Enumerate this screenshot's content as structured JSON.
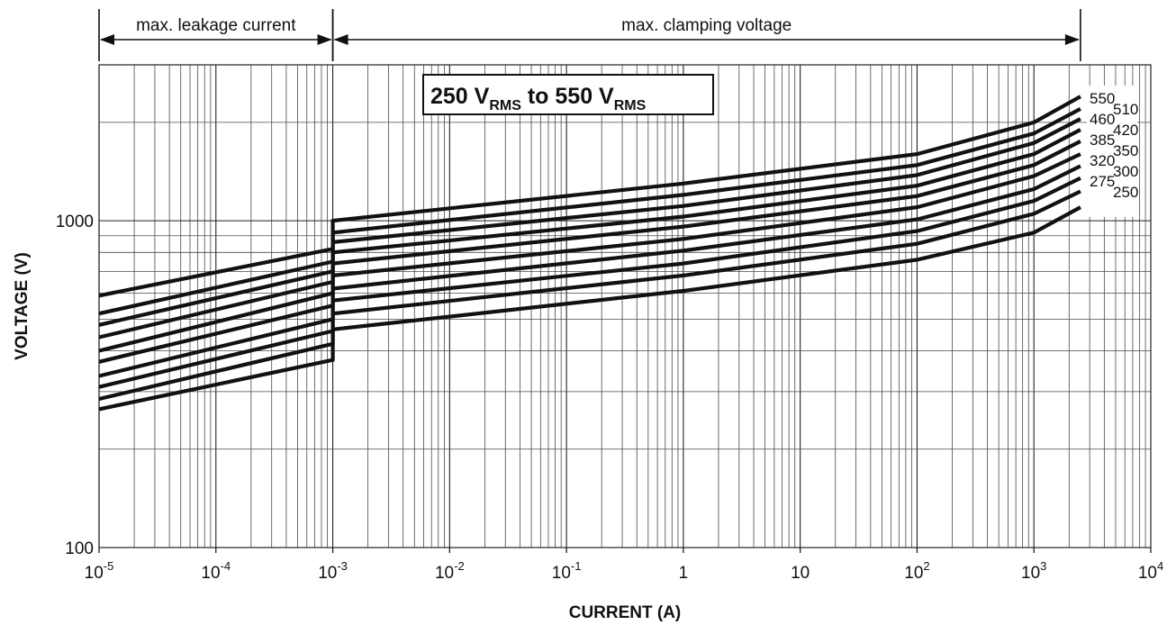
{
  "chart_data": {
    "type": "line",
    "title_parts": [
      "250 V",
      "RMS",
      " to 550 V",
      "RMS"
    ],
    "xlabel": "CURRENT (A)",
    "ylabel": "VOLTAGE (V)",
    "xscale": "log",
    "yscale": "log",
    "xlim": [
      1e-05,
      10000
    ],
    "ylim": [
      100,
      3000
    ],
    "grid": true,
    "x_ticks": [
      {
        "base": "10",
        "exp": "-5",
        "value": 1e-05
      },
      {
        "base": "10",
        "exp": "-4",
        "value": 0.0001
      },
      {
        "base": "10",
        "exp": "-3",
        "value": 0.001
      },
      {
        "base": "10",
        "exp": "-2",
        "value": 0.01
      },
      {
        "base": "10",
        "exp": "-1",
        "value": 0.1
      },
      {
        "base": "1",
        "exp": "",
        "value": 1
      },
      {
        "base": "10",
        "exp": "",
        "value": 10
      },
      {
        "base": "10",
        "exp": "2",
        "value": 100
      },
      {
        "base": "10",
        "exp": "3",
        "value": 1000
      },
      {
        "base": "10",
        "exp": "4",
        "value": 10000
      }
    ],
    "y_ticks": [
      {
        "label": "100",
        "value": 100
      },
      {
        "label": "1000",
        "value": 1000
      }
    ],
    "annotations": {
      "leakage": {
        "text": "max. leakage current",
        "x_from": 1e-05,
        "x_to": 0.001
      },
      "clamping": {
        "text": "max. clamping voltage",
        "x_from": 0.001,
        "x_to": 2500
      }
    },
    "legend_placement": "right",
    "legend_left": [
      "550",
      "460",
      "385",
      "320",
      "275"
    ],
    "legend_right": [
      "510",
      "420",
      "350",
      "300",
      "250"
    ],
    "series": [
      {
        "name": "550",
        "x": [
          1e-05,
          0.001,
          0.001,
          1,
          100,
          1000,
          2500
        ],
        "y": [
          590,
          820,
          1000,
          1300,
          1600,
          2000,
          2400
        ]
      },
      {
        "name": "510",
        "x": [
          1e-05,
          0.001,
          0.001,
          1,
          100,
          1000,
          2500
        ],
        "y": [
          520,
          750,
          920,
          1200,
          1480,
          1850,
          2200
        ]
      },
      {
        "name": "460",
        "x": [
          1e-05,
          0.001,
          0.001,
          1,
          100,
          1000,
          2500
        ],
        "y": [
          480,
          700,
          860,
          1110,
          1380,
          1730,
          2050
        ]
      },
      {
        "name": "420",
        "x": [
          1e-05,
          0.001,
          0.001,
          1,
          100,
          1000,
          2500
        ],
        "y": [
          440,
          650,
          800,
          1030,
          1280,
          1600,
          1900
        ]
      },
      {
        "name": "385",
        "x": [
          1e-05,
          0.001,
          0.001,
          1,
          100,
          1000,
          2500
        ],
        "y": [
          400,
          600,
          740,
          960,
          1190,
          1480,
          1750
        ]
      },
      {
        "name": "350",
        "x": [
          1e-05,
          0.001,
          0.001,
          1,
          100,
          1000,
          2500
        ],
        "y": [
          370,
          550,
          680,
          880,
          1100,
          1370,
          1600
        ]
      },
      {
        "name": "320",
        "x": [
          1e-05,
          0.001,
          0.001,
          1,
          100,
          1000,
          2500
        ],
        "y": [
          335,
          500,
          620,
          810,
          1010,
          1250,
          1470
        ]
      },
      {
        "name": "300",
        "x": [
          1e-05,
          0.001,
          0.001,
          1,
          100,
          1000,
          2500
        ],
        "y": [
          310,
          460,
          570,
          740,
          930,
          1150,
          1350
        ]
      },
      {
        "name": "275",
        "x": [
          1e-05,
          0.001,
          0.001,
          1,
          100,
          1000,
          2500
        ],
        "y": [
          285,
          420,
          520,
          680,
          850,
          1050,
          1230
        ]
      },
      {
        "name": "250",
        "x": [
          1e-05,
          0.001,
          0.001,
          1,
          100,
          1000,
          2500
        ],
        "y": [
          265,
          375,
          465,
          610,
          760,
          920,
          1100
        ]
      }
    ]
  }
}
